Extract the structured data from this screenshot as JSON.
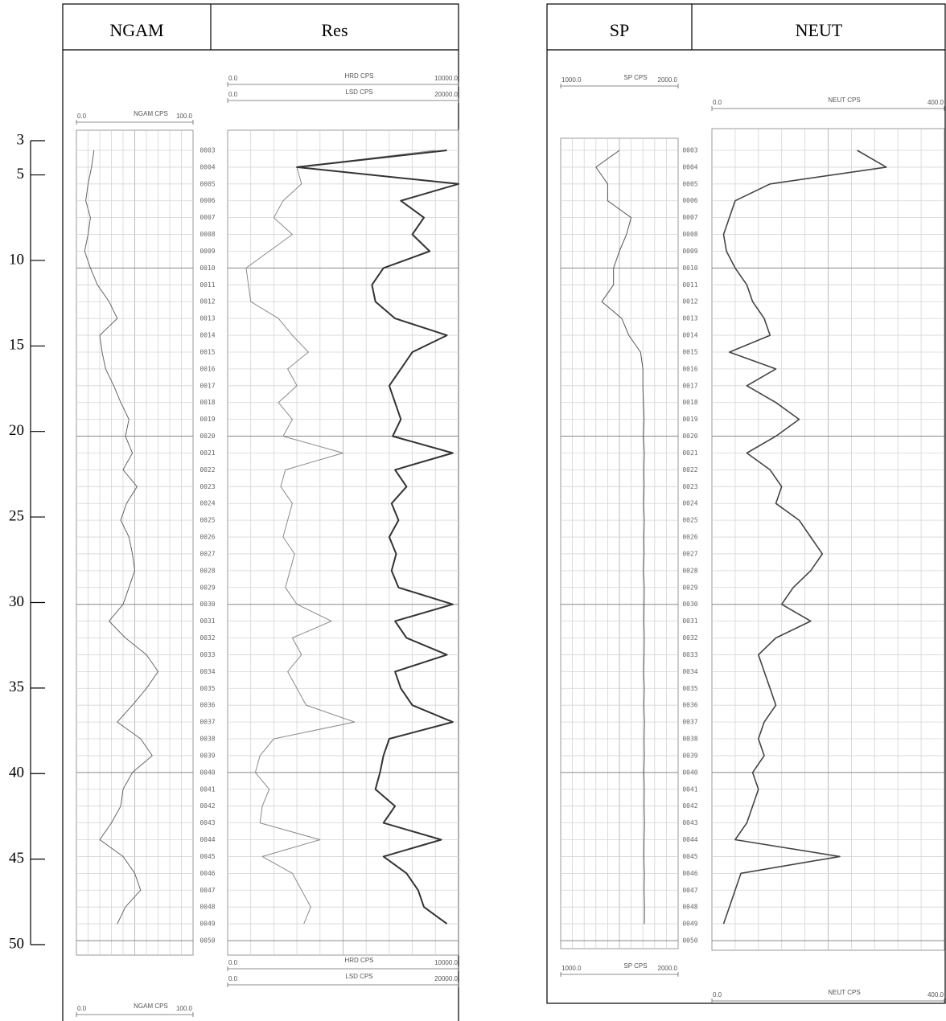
{
  "chart_data": {
    "type": "well-log",
    "ylim": [
      3,
      50
    ],
    "yticks": [
      3,
      5,
      10,
      15,
      20,
      25,
      30,
      35,
      40,
      45,
      50
    ],
    "depth": [
      3,
      4,
      5,
      6,
      7,
      8,
      9,
      10,
      11,
      12,
      13,
      14,
      15,
      16,
      17,
      18,
      19,
      20,
      21,
      22,
      23,
      24,
      25,
      26,
      27,
      28,
      29,
      30,
      31,
      32,
      33,
      34,
      35,
      36,
      37,
      38,
      39,
      40,
      41,
      42,
      43,
      44,
      45,
      46,
      47,
      48,
      49
    ],
    "logs": [
      {
        "depth_labels": [
          {
            "value": 3,
            "label": "0003"
          },
          {
            "value": 4,
            "label": "0004"
          },
          {
            "value": 5,
            "label": "0005"
          },
          {
            "value": 6,
            "label": "0006"
          },
          {
            "value": 7,
            "label": "0007"
          },
          {
            "value": 8,
            "label": "0008"
          },
          {
            "value": 9,
            "label": "0009"
          },
          {
            "value": 10,
            "label": "0010"
          },
          {
            "value": 11,
            "label": "0011"
          },
          {
            "value": 12,
            "label": "0012"
          },
          {
            "value": 13,
            "label": "0013"
          },
          {
            "value": 14,
            "label": "0014"
          },
          {
            "value": 15,
            "label": "0015"
          },
          {
            "value": 16,
            "label": "0016"
          },
          {
            "value": 17,
            "label": "0017"
          },
          {
            "value": 18,
            "label": "0018"
          },
          {
            "value": 19,
            "label": "0019"
          },
          {
            "value": 20,
            "label": "0020"
          },
          {
            "value": 21,
            "label": "0021"
          },
          {
            "value": 22,
            "label": "0022"
          },
          {
            "value": 23,
            "label": "0023"
          },
          {
            "value": 24,
            "label": "0024"
          },
          {
            "value": 25,
            "label": "0025"
          },
          {
            "value": 26,
            "label": "0026"
          },
          {
            "value": 27,
            "label": "0027"
          },
          {
            "value": 28,
            "label": "0028"
          },
          {
            "value": 29,
            "label": "0029"
          },
          {
            "value": 30,
            "label": "0030"
          },
          {
            "value": 31,
            "label": "0031"
          },
          {
            "value": 32,
            "label": "0032"
          },
          {
            "value": 33,
            "label": "0033"
          },
          {
            "value": 34,
            "label": "0034"
          },
          {
            "value": 35,
            "label": "0035"
          },
          {
            "value": 36,
            "label": "0036"
          },
          {
            "value": 37,
            "label": "0037"
          },
          {
            "value": 38,
            "label": "0038"
          },
          {
            "value": 39,
            "label": "0039"
          },
          {
            "value": 40,
            "label": "0040"
          },
          {
            "value": 41,
            "label": "0041"
          },
          {
            "value": 42,
            "label": "0042"
          },
          {
            "value": 43,
            "label": "0043"
          },
          {
            "value": 44,
            "label": "0044"
          },
          {
            "value": 45,
            "label": "0045"
          },
          {
            "value": 46,
            "label": "0046"
          },
          {
            "value": 47,
            "label": "0047"
          },
          {
            "value": 48,
            "label": "0048"
          },
          {
            "value": 49,
            "label": "0049"
          },
          {
            "value": 50,
            "label": "0050"
          }
        ],
        "tracks": [
          {
            "title": "NGAM",
            "curves": [
              {
                "name": "NGAM CPS",
                "color": "#666666",
                "xlim": [
                  0,
                  100
                ],
                "xticks": [
                  {
                    "value": 0,
                    "label": "0.0"
                  },
                  {
                    "value": 100,
                    "label": "100.0"
                  }
                ],
                "values": [
                  15,
                  13,
                  10,
                  8,
                  12,
                  10,
                  7,
                  12,
                  18,
                  28,
                  35,
                  20,
                  22,
                  25,
                  32,
                  38,
                  45,
                  42,
                  48,
                  40,
                  52,
                  43,
                  38,
                  45,
                  48,
                  50,
                  45,
                  40,
                  28,
                  42,
                  60,
                  70,
                  60,
                  48,
                  35,
                  55,
                  65,
                  48,
                  40,
                  38,
                  30,
                  20,
                  40,
                  50,
                  55,
                  42,
                  35
                ]
              }
            ]
          },
          {
            "title": "Res",
            "curves": [
              {
                "name": "HRD CPS",
                "color": "#8a8a8a",
                "xlim": [
                  0,
                  10000
                ],
                "xticks": [
                  {
                    "value": 0,
                    "label": "0.0"
                  },
                  {
                    "value": 10000,
                    "label": "10000.0"
                  }
                ],
                "values": [
                  9000,
                  3000,
                  3200,
                  2400,
                  2000,
                  2800,
                  1800,
                  800,
                  900,
                  1000,
                  2200,
                  2800,
                  3500,
                  2600,
                  3000,
                  2200,
                  2800,
                  2400,
                  5000,
                  2500,
                  2300,
                  2800,
                  2600,
                  2400,
                  2900,
                  2700,
                  2500,
                  3000,
                  4500,
                  2800,
                  3200,
                  2600,
                  3000,
                  3400,
                  5500,
                  2000,
                  1400,
                  1200,
                  1800,
                  1500,
                  1400,
                  4000,
                  1500,
                  2800,
                  3200,
                  3600,
                  3300
                ]
              },
              {
                "name": "LSD CPS",
                "color": "#333333",
                "xlim": [
                  0,
                  20000
                ],
                "xticks": [
                  {
                    "value": 0,
                    "label": "0.0"
                  },
                  {
                    "value": 20000,
                    "label": "20000.0"
                  }
                ],
                "values": [
                  19000,
                  6000,
                  20000,
                  15000,
                  17000,
                  16000,
                  17500,
                  13500,
                  12500,
                  12800,
                  14500,
                  19000,
                  16000,
                  15000,
                  14000,
                  14500,
                  15000,
                  14300,
                  19500,
                  14500,
                  15500,
                  14200,
                  14800,
                  14000,
                  14600,
                  14200,
                  14800,
                  19500,
                  14500,
                  15500,
                  19000,
                  14500,
                  15000,
                  16000,
                  19500,
                  14000,
                  13500,
                  13200,
                  12800,
                  14500,
                  13500,
                  18500,
                  13500,
                  15500,
                  16500,
                  17000,
                  19000
                ]
              }
            ]
          }
        ]
      },
      {
        "depth_labels": [
          {
            "value": 3,
            "label": "0003"
          },
          {
            "value": 4,
            "label": "0004"
          },
          {
            "value": 5,
            "label": "0005"
          },
          {
            "value": 6,
            "label": "0006"
          },
          {
            "value": 7,
            "label": "0007"
          },
          {
            "value": 8,
            "label": "0008"
          },
          {
            "value": 9,
            "label": "0009"
          },
          {
            "value": 10,
            "label": "0010"
          },
          {
            "value": 11,
            "label": "0011"
          },
          {
            "value": 12,
            "label": "0012"
          },
          {
            "value": 13,
            "label": "0013"
          },
          {
            "value": 14,
            "label": "0014"
          },
          {
            "value": 15,
            "label": "0015"
          },
          {
            "value": 16,
            "label": "0016"
          },
          {
            "value": 17,
            "label": "0017"
          },
          {
            "value": 18,
            "label": "0018"
          },
          {
            "value": 19,
            "label": "0019"
          },
          {
            "value": 20,
            "label": "0020"
          },
          {
            "value": 21,
            "label": "0021"
          },
          {
            "value": 22,
            "label": "0022"
          },
          {
            "value": 23,
            "label": "0023"
          },
          {
            "value": 24,
            "label": "0024"
          },
          {
            "value": 25,
            "label": "0025"
          },
          {
            "value": 26,
            "label": "0026"
          },
          {
            "value": 27,
            "label": "0027"
          },
          {
            "value": 28,
            "label": "0028"
          },
          {
            "value": 29,
            "label": "0029"
          },
          {
            "value": 30,
            "label": "0030"
          },
          {
            "value": 31,
            "label": "0031"
          },
          {
            "value": 32,
            "label": "0032"
          },
          {
            "value": 33,
            "label": "0033"
          },
          {
            "value": 34,
            "label": "0034"
          },
          {
            "value": 35,
            "label": "0035"
          },
          {
            "value": 36,
            "label": "0036"
          },
          {
            "value": 37,
            "label": "0037"
          },
          {
            "value": 38,
            "label": "0038"
          },
          {
            "value": 39,
            "label": "0039"
          },
          {
            "value": 40,
            "label": "0040"
          },
          {
            "value": 41,
            "label": "0041"
          },
          {
            "value": 42,
            "label": "0042"
          },
          {
            "value": 43,
            "label": "0043"
          },
          {
            "value": 44,
            "label": "0044"
          },
          {
            "value": 45,
            "label": "0045"
          },
          {
            "value": 46,
            "label": "0046"
          },
          {
            "value": 47,
            "label": "0047"
          },
          {
            "value": 48,
            "label": "0048"
          },
          {
            "value": 49,
            "label": "0049"
          },
          {
            "value": 50,
            "label": "0050"
          }
        ],
        "tracks": [
          {
            "title": "SP",
            "curves": [
              {
                "name": "SP CPS",
                "color": "#555555",
                "xlim": [
                  1000,
                  2000
                ],
                "xticks": [
                  {
                    "value": 1000,
                    "label": "1000.0"
                  },
                  {
                    "value": 2000,
                    "label": "2000.0"
                  }
                ],
                "values": [
                  1500,
                  1300,
                  1400,
                  1400,
                  1600,
                  1560,
                  1500,
                  1450,
                  1450,
                  1350,
                  1520,
                  1580,
                  1680,
                  1700,
                  1700,
                  1705,
                  1710,
                  1705,
                  1712,
                  1708,
                  1710,
                  1706,
                  1712,
                  1708,
                  1710,
                  1705,
                  1712,
                  1710,
                  1708,
                  1712,
                  1710,
                  1706,
                  1712,
                  1708,
                  1714,
                  1710,
                  1712,
                  1708,
                  1712,
                  1710,
                  1714,
                  1710,
                  1708,
                  1712,
                  1710,
                  1714,
                  1712
                ]
              }
            ]
          },
          {
            "title": "NEUT",
            "curves": [
              {
                "name": "NEUT CPS",
                "color": "#444444",
                "xlim": [
                  0,
                  400
                ],
                "xticks": [
                  {
                    "value": 0,
                    "label": "0.0"
                  },
                  {
                    "value": 400,
                    "label": "400.0"
                  }
                ],
                "values": [
                  250,
                  300,
                  100,
                  40,
                  30,
                  20,
                  25,
                  40,
                  60,
                  70,
                  90,
                  100,
                  30,
                  110,
                  60,
                  110,
                  150,
                  110,
                  60,
                  100,
                  120,
                  110,
                  150,
                  170,
                  190,
                  170,
                  140,
                  120,
                  170,
                  110,
                  80,
                  90,
                  100,
                  110,
                  90,
                  80,
                  90,
                  70,
                  80,
                  70,
                  60,
                  40,
                  220,
                  50,
                  40,
                  30,
                  20
                ]
              }
            ]
          }
        ]
      }
    ]
  }
}
